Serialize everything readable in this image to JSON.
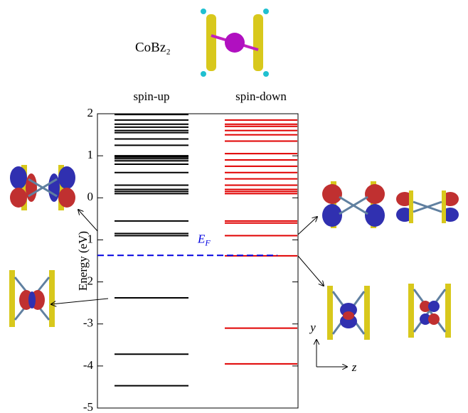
{
  "chart_data": {
    "type": "levels",
    "title": "CoBz₂",
    "ylabel": "Energy (eV)",
    "ylim": [
      -5,
      2
    ],
    "yticks": [
      -5,
      -4,
      -3,
      -2,
      -1,
      0,
      1,
      2
    ],
    "series": [
      {
        "name": "spin-up",
        "color": "#000000",
        "values": [
          1.98,
          1.85,
          1.75,
          1.68,
          1.6,
          1.55,
          1.4,
          1.25,
          1.0,
          0.97,
          0.93,
          0.88,
          0.8,
          0.6,
          0.3,
          0.2,
          0.15,
          0.1,
          -0.55,
          -0.85,
          -0.9,
          -2.38,
          -3.72,
          -4.47
        ]
      },
      {
        "name": "spin-down",
        "color": "#e00000",
        "values": [
          1.85,
          1.75,
          1.7,
          1.6,
          1.5,
          1.35,
          1.05,
          0.9,
          0.75,
          0.6,
          0.45,
          0.3,
          0.2,
          0.15,
          0.1,
          -0.55,
          -0.6,
          -0.9,
          -1.38,
          -3.1,
          -3.95
        ]
      }
    ],
    "fermi_level": -1.37,
    "fermi_color": "#0000e0",
    "fermi_label": {
      "symbol": "E",
      "subscript": "F"
    },
    "axes_labels": [
      "y",
      "z"
    ]
  }
}
